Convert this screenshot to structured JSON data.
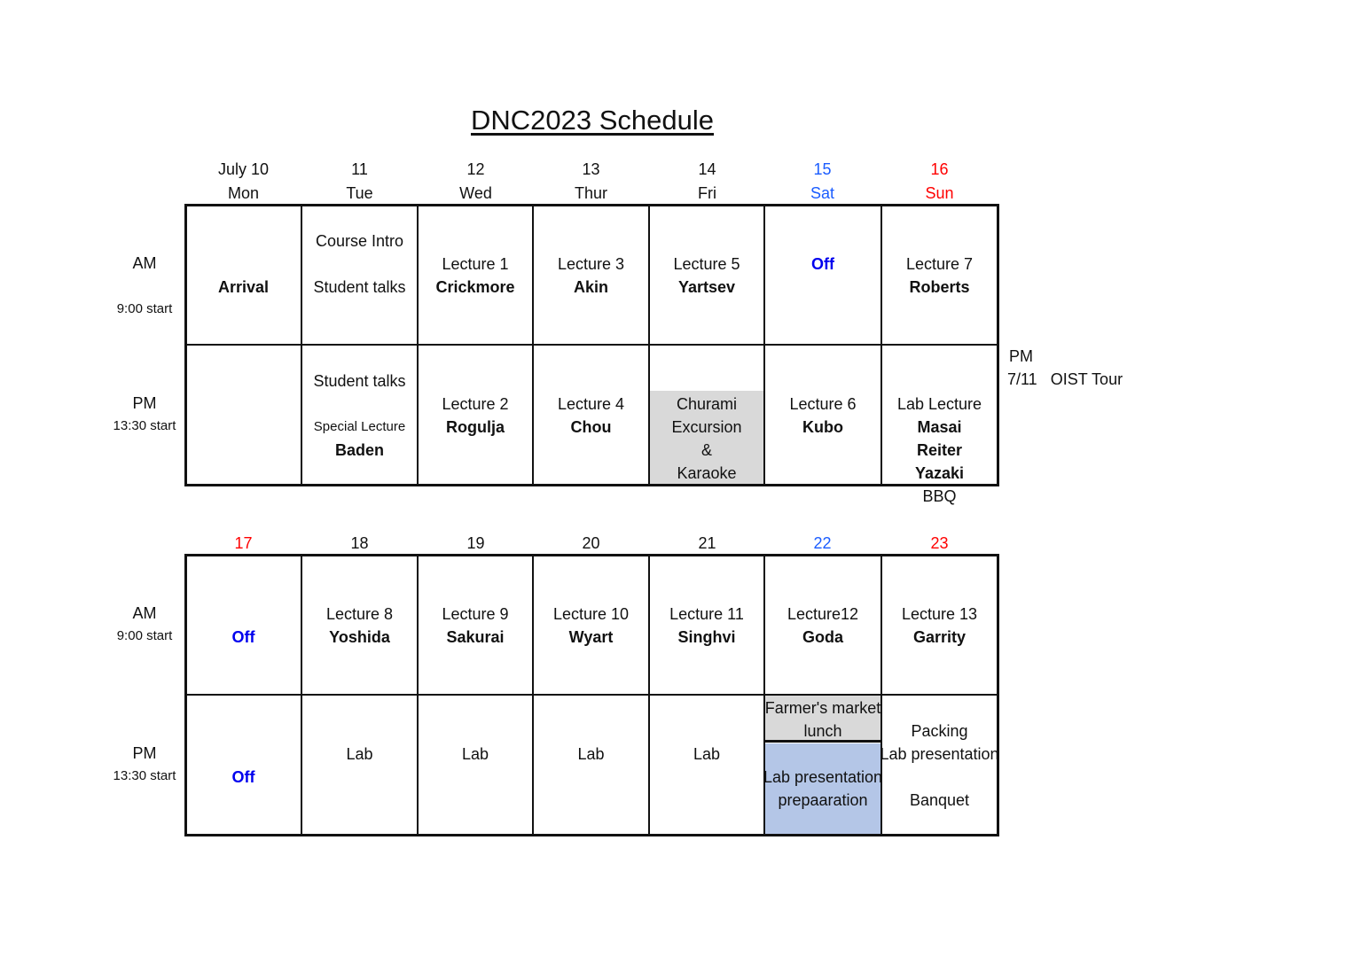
{
  "title": "DNC2023 Schedule",
  "colors": {
    "saturday": "#1a5cff",
    "sunday": "#ff0000",
    "off": "#0000ee",
    "gray_fill": "#d9d9d9",
    "blue_fill": "#b4c6e7"
  },
  "week1": {
    "days": [
      {
        "date": "July 10",
        "weekday": "Mon",
        "color": "#111111"
      },
      {
        "date": "11",
        "weekday": "Tue",
        "color": "#111111"
      },
      {
        "date": "12",
        "weekday": "Wed",
        "color": "#111111"
      },
      {
        "date": "13",
        "weekday": "Thur",
        "color": "#111111"
      },
      {
        "date": "14",
        "weekday": "Fri",
        "color": "#111111"
      },
      {
        "date": "15",
        "weekday": "Sat",
        "color": "#1a5cff"
      },
      {
        "date": "16",
        "weekday": "Sun",
        "color": "#ff0000"
      }
    ],
    "am_label": {
      "period": "AM",
      "start": "9:00 start"
    },
    "pm_label": {
      "period": "PM",
      "start": "13:30 start"
    },
    "am": [
      [
        {
          "text": ""
        },
        {
          "text": ""
        },
        {
          "text": ""
        },
        {
          "text": "Arrival",
          "style": "bold"
        }
      ],
      [
        {
          "text": ""
        },
        {
          "text": "Course Intro"
        },
        {
          "text": ""
        },
        {
          "text": "Student talks"
        }
      ],
      [
        {
          "text": ""
        },
        {
          "text": ""
        },
        {
          "text": "Lecture 1"
        },
        {
          "text": "Crickmore",
          "style": "bold"
        }
      ],
      [
        {
          "text": ""
        },
        {
          "text": ""
        },
        {
          "text": "Lecture 3"
        },
        {
          "text": "Akin",
          "style": "bold"
        }
      ],
      [
        {
          "text": ""
        },
        {
          "text": ""
        },
        {
          "text": "Lecture 5"
        },
        {
          "text": "Yartsev",
          "style": "bold"
        }
      ],
      [
        {
          "text": ""
        },
        {
          "text": ""
        },
        {
          "text": "Off",
          "style": "bold",
          "color": "#0000ee"
        }
      ],
      [
        {
          "text": ""
        },
        {
          "text": ""
        },
        {
          "text": "Lecture 7"
        },
        {
          "text": "Roberts",
          "style": "bold"
        }
      ]
    ],
    "pm": [
      [],
      [
        {
          "text": ""
        },
        {
          "text": "Student talks"
        },
        {
          "text": ""
        },
        {
          "text": "Special Lecture",
          "style": "small"
        },
        {
          "text": "Baden",
          "style": "bold"
        }
      ],
      [
        {
          "text": ""
        },
        {
          "text": ""
        },
        {
          "text": "Lecture 2"
        },
        {
          "text": "Rogulja",
          "style": "bold"
        }
      ],
      [
        {
          "text": ""
        },
        {
          "text": ""
        },
        {
          "text": "Lecture 4"
        },
        {
          "text": "Chou",
          "style": "bold"
        }
      ],
      [
        {
          "text": ""
        },
        {
          "text": ""
        },
        {
          "text": "Churami"
        },
        {
          "text": "Excursion"
        },
        {
          "text": "&"
        },
        {
          "text": "Karaoke"
        }
      ],
      [
        {
          "text": ""
        },
        {
          "text": ""
        },
        {
          "text": "Lecture 6"
        },
        {
          "text": "Kubo",
          "style": "bold"
        }
      ],
      [
        {
          "text": ""
        },
        {
          "text": ""
        },
        {
          "text": "Lab Lecture"
        },
        {
          "text": "Masai",
          "style": "bold"
        },
        {
          "text": "Reiter",
          "style": "bold"
        },
        {
          "text": "Yazaki",
          "style": "bold"
        },
        {
          "text": "BBQ"
        }
      ]
    ],
    "side_note": {
      "period": "PM",
      "text": "7/11   OIST Tour"
    }
  },
  "week2": {
    "days": [
      {
        "date": "17",
        "color": "#ff0000"
      },
      {
        "date": "18",
        "color": "#111111"
      },
      {
        "date": "19",
        "color": "#111111"
      },
      {
        "date": "20",
        "color": "#111111"
      },
      {
        "date": "21",
        "color": "#111111"
      },
      {
        "date": "22",
        "color": "#1a5cff"
      },
      {
        "date": "23",
        "color": "#ff0000"
      }
    ],
    "am_label": {
      "period": "AM",
      "start": "9:00 start"
    },
    "pm_label": {
      "period": "PM",
      "start": "13:30 start"
    },
    "am": [
      [
        {
          "text": ""
        },
        {
          "text": ""
        },
        {
          "text": ""
        },
        {
          "text": "Off",
          "style": "bold",
          "color": "#0000ee"
        }
      ],
      [
        {
          "text": ""
        },
        {
          "text": ""
        },
        {
          "text": "Lecture 8"
        },
        {
          "text": "Yoshida",
          "style": "bold"
        }
      ],
      [
        {
          "text": ""
        },
        {
          "text": ""
        },
        {
          "text": "Lecture 9"
        },
        {
          "text": "Sakurai",
          "style": "bold"
        }
      ],
      [
        {
          "text": ""
        },
        {
          "text": ""
        },
        {
          "text": "Lecture 10"
        },
        {
          "text": "Wyart",
          "style": "bold"
        }
      ],
      [
        {
          "text": ""
        },
        {
          "text": ""
        },
        {
          "text": "Lecture 11"
        },
        {
          "text": "Singhvi",
          "style": "bold"
        }
      ],
      [
        {
          "text": ""
        },
        {
          "text": ""
        },
        {
          "text": "Lecture12"
        },
        {
          "text": "Goda",
          "style": "bold"
        }
      ],
      [
        {
          "text": ""
        },
        {
          "text": ""
        },
        {
          "text": "Lecture 13"
        },
        {
          "text": "Garrity",
          "style": "bold"
        }
      ]
    ],
    "pm": [
      [
        {
          "text": ""
        },
        {
          "text": ""
        },
        {
          "text": ""
        },
        {
          "text": "Off",
          "style": "bold",
          "color": "#0000ee"
        }
      ],
      [
        {
          "text": ""
        },
        {
          "text": ""
        },
        {
          "text": "Lab"
        }
      ],
      [
        {
          "text": ""
        },
        {
          "text": ""
        },
        {
          "text": "Lab"
        }
      ],
      [
        {
          "text": ""
        },
        {
          "text": ""
        },
        {
          "text": "Lab"
        }
      ],
      [
        {
          "text": ""
        },
        {
          "text": ""
        },
        {
          "text": "Lab"
        }
      ],
      [
        {
          "text": "Farmer's market"
        },
        {
          "text": "lunch"
        },
        {
          "text": ""
        },
        {
          "text": "Lab presentation"
        },
        {
          "text": "prepaaration"
        }
      ],
      [
        {
          "text": ""
        },
        {
          "text": "Packing"
        },
        {
          "text": "Lab presentation"
        },
        {
          "text": ""
        },
        {
          "text": "Banquet"
        }
      ]
    ]
  }
}
